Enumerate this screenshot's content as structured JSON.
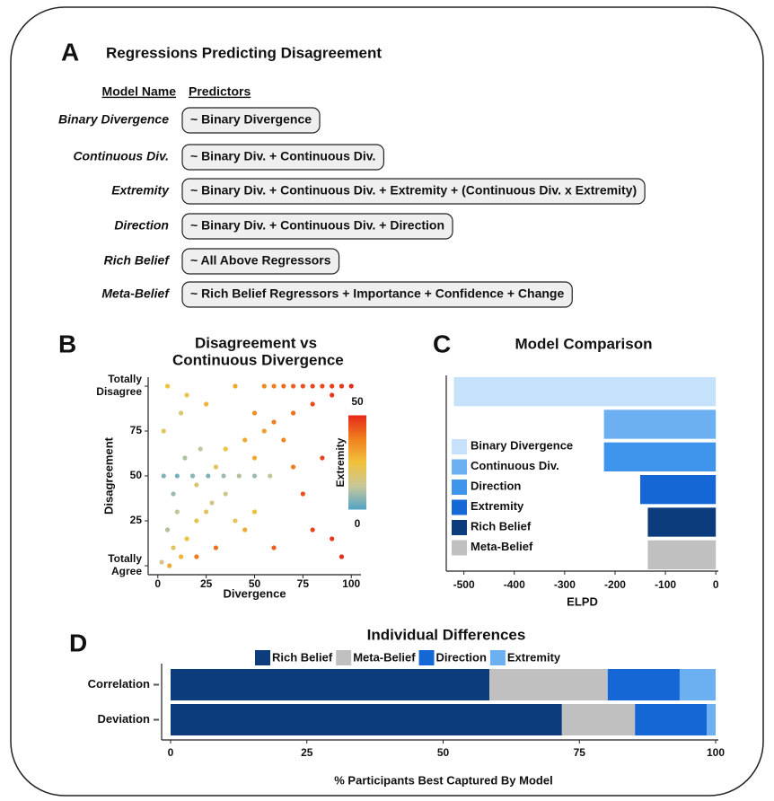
{
  "panel_a": {
    "letter": "A",
    "title": "Regressions Predicting Disagreement",
    "headers": [
      "Model Name",
      "Predictors"
    ],
    "rows": [
      {
        "name": "Binary Divergence",
        "predictors": "~ Binary Divergence"
      },
      {
        "name": "Continuous Div.",
        "predictors": "~ Binary Div. + Continuous Div."
      },
      {
        "name": "Extremity",
        "predictors": "~ Binary Div. + Continuous Div. + Extremity + (Continuous Div. x Extremity)"
      },
      {
        "name": "Direction",
        "predictors": "~ Binary Div. + Continuous Div. + Direction"
      },
      {
        "name": "Rich Belief",
        "predictors": "~ All Above Regressors"
      },
      {
        "name": "Meta-Belief",
        "predictors": "~ Rich Belief Regressors + Importance + Confidence + Change"
      }
    ]
  },
  "chart_data": [
    {
      "type": "scatter",
      "letter": "B",
      "title": "Disagreement vs Continuous Divergence",
      "x_label": "Divergence",
      "y_label": "Disagreement",
      "x": [
        100,
        95,
        90,
        85,
        80,
        75,
        70,
        65,
        60,
        55,
        40,
        5,
        15,
        25,
        50,
        60,
        70,
        80,
        90,
        45,
        35,
        55,
        65,
        30,
        20,
        10,
        5,
        8,
        12,
        15,
        20,
        25,
        3,
        10,
        18,
        26,
        34,
        42,
        50,
        58,
        8,
        14,
        22,
        28,
        35,
        40,
        45,
        50,
        2,
        6,
        20,
        30,
        60,
        80,
        90,
        95,
        75,
        85,
        3,
        12,
        50,
        70
      ],
      "values": [
        100,
        100,
        100,
        100,
        100,
        100,
        100,
        100,
        100,
        100,
        100,
        100,
        95,
        90,
        85,
        80,
        85,
        90,
        95,
        70,
        65,
        75,
        70,
        55,
        45,
        30,
        20,
        10,
        5,
        15,
        25,
        30,
        50,
        50,
        50,
        50,
        50,
        50,
        50,
        50,
        40,
        60,
        65,
        35,
        40,
        25,
        20,
        30,
        2,
        0,
        5,
        10,
        10,
        20,
        15,
        5,
        40,
        60,
        75,
        85,
        60,
        55
      ],
      "extremity": [
        50,
        48,
        47,
        45,
        46,
        44,
        42,
        40,
        38,
        36,
        30,
        25,
        22,
        28,
        35,
        38,
        40,
        45,
        48,
        30,
        25,
        32,
        36,
        20,
        18,
        12,
        10,
        20,
        28,
        25,
        22,
        20,
        5,
        4,
        6,
        5,
        8,
        10,
        8,
        12,
        8,
        10,
        12,
        15,
        14,
        20,
        30,
        26,
        15,
        30,
        38,
        40,
        42,
        46,
        48,
        49,
        44,
        46,
        20,
        18,
        30,
        38
      ],
      "xlim": [
        -5,
        105
      ],
      "ylim": [
        -5,
        105
      ],
      "xticks": [
        0,
        25,
        50,
        75,
        100
      ],
      "yticks": [
        {
          "value": 0,
          "label": "Totally Agree"
        },
        25,
        50,
        75,
        {
          "value": 100,
          "label": "Totally Disagree"
        }
      ],
      "colorbar": {
        "label": "Extremity",
        "lim": [
          0,
          50
        ],
        "ticks": [
          0,
          50
        ],
        "colors": [
          "#4fa3c8",
          "#c8c79a",
          "#f1c23c",
          "#f0801e",
          "#e5261a"
        ]
      }
    },
    {
      "type": "hbar",
      "letter": "C",
      "title": "Model Comparison",
      "x_label": "ELPD",
      "categories": [
        "Binary Divergence",
        "Continuous Div.",
        "Direction",
        "Extremity",
        "Rich Belief",
        "Meta-Belief"
      ],
      "values": [
        -520,
        -222,
        -222,
        -150,
        -135,
        -135
      ],
      "colors": [
        "#c6e2fa",
        "#6cb0f2",
        "#3f94ec",
        "#1467d4",
        "#0c3c7c",
        "#c0c0c0"
      ],
      "xlim": [
        -535,
        5
      ],
      "xticks": [
        -500,
        -400,
        -300,
        -200,
        -100,
        0
      ]
    },
    {
      "type": "stacked_hbar",
      "letter": "D",
      "title": "Individual Differences",
      "x_label": "% Participants Best Captured By Model",
      "categories": [
        "Correlation",
        "Deviation"
      ],
      "series": [
        {
          "name": "Rich Belief",
          "color": "#0c3c7c",
          "values": [
            58.5,
            71.8
          ]
        },
        {
          "name": "Meta-Belief",
          "color": "#c0c0c0",
          "values": [
            21.7,
            13.4
          ]
        },
        {
          "name": "Direction",
          "color": "#1467d4",
          "values": [
            13.2,
            13.2
          ]
        },
        {
          "name": "Extremity",
          "color": "#6cb0f2",
          "values": [
            6.6,
            1.6
          ]
        }
      ],
      "xlim": [
        0,
        100
      ],
      "xticks": [
        0,
        25,
        50,
        75,
        100
      ]
    }
  ]
}
